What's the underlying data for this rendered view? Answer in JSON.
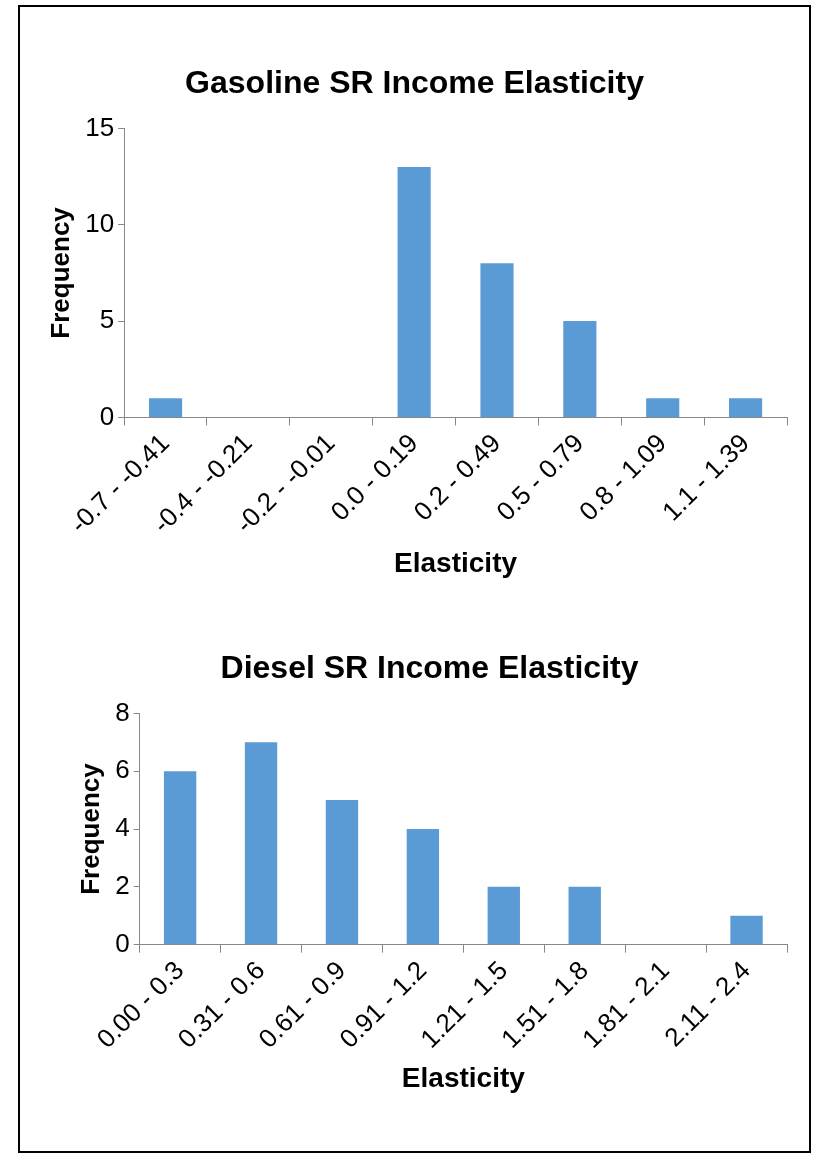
{
  "chart_data": [
    {
      "type": "bar",
      "title": "Gasoline SR Income Elasticity",
      "xlabel": "Elasticity",
      "ylabel": "Frequency",
      "categories": [
        "-0.7 - -0.41",
        "-0.4 - -0.21",
        "-0.2 - -0.01",
        "0.0 - 0.19",
        "0.2 - 0.49",
        "0.5 - 0.79",
        "0.8 - 1.09",
        "1.1 - 1.39"
      ],
      "values": [
        1,
        0,
        0,
        13,
        8,
        5,
        1,
        1
      ],
      "color": "#5b9bd5",
      "ylim": [
        0,
        15
      ],
      "yticks": [
        0,
        5,
        10,
        15
      ]
    },
    {
      "type": "bar",
      "title": "Diesel SR Income Elasticity",
      "xlabel": "Elasticity",
      "ylabel": "Frequency",
      "categories": [
        "0.00 - 0.3",
        "0.31 - 0.6",
        "0.61 - 0.9",
        "0.91 - 1.2",
        "1.21 - 1.5",
        "1.51 - 1.8",
        "1.81 - 2.1",
        "2.11 - 2.4"
      ],
      "values": [
        6,
        7,
        5,
        4,
        2,
        2,
        0,
        1
      ],
      "color": "#5b9bd5",
      "ylim": [
        0,
        8
      ],
      "yticks": [
        0,
        2,
        4,
        6,
        8
      ]
    }
  ]
}
